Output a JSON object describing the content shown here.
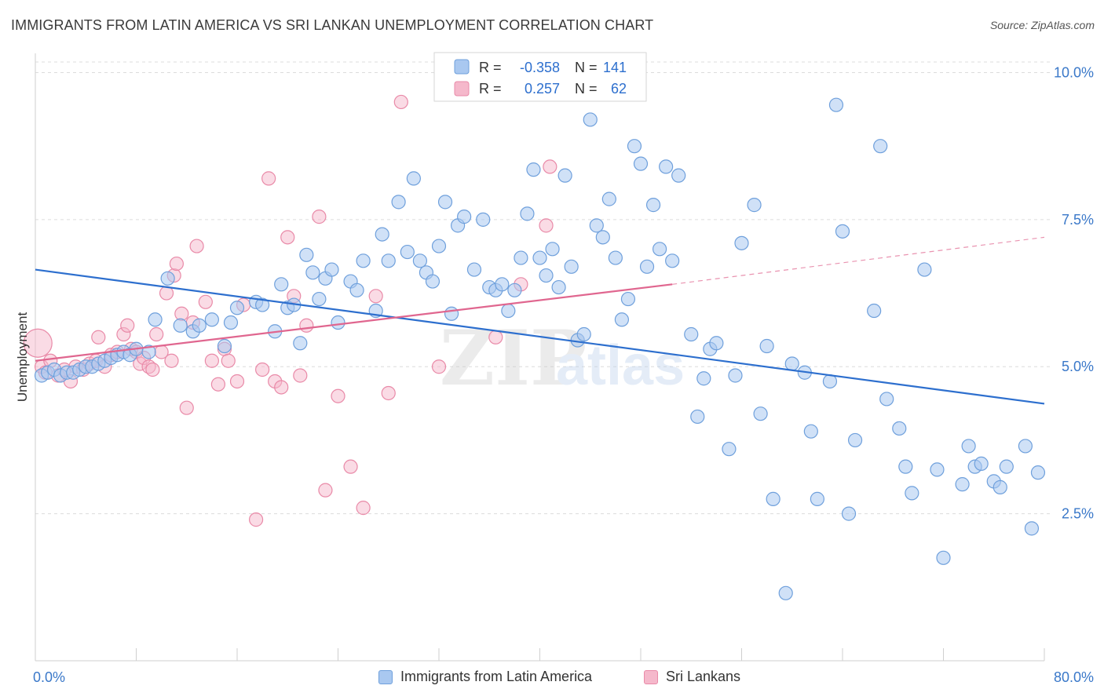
{
  "header": {
    "title": "IMMIGRANTS FROM LATIN AMERICA VS SRI LANKAN UNEMPLOYMENT CORRELATION CHART",
    "source": "Source: ZipAtlas.com"
  },
  "watermark": {
    "zip": "ZIP",
    "atlas": "atlas"
  },
  "colors": {
    "blue_fill": "#a9c8f0",
    "blue_stroke": "#6fa0dc",
    "blue_line": "#2d6fce",
    "pink_fill": "#f5b8cb",
    "pink_stroke": "#e98aa8",
    "pink_line": "#e0668f",
    "axis_text": "#3a78c9",
    "grid": "#dcdcdc"
  },
  "stats_legend": [
    {
      "r_label": "R =",
      "r_value": "-0.358",
      "n_label": "N =",
      "n_value": "141",
      "color": "blue"
    },
    {
      "r_label": "R =",
      "r_value": "0.257",
      "n_label": "N =",
      "n_value": "62",
      "color": "pink"
    }
  ],
  "chart_data": {
    "type": "scatter",
    "title": "IMMIGRANTS FROM LATIN AMERICA VS SRI LANKAN UNEMPLOYMENT CORRELATION CHART",
    "xlabel": "",
    "ylabel": "Unemployment",
    "xlim": [
      0,
      80
    ],
    "ylim": [
      0,
      10.5
    ],
    "x_tick_labels": [
      "0.0%",
      "80.0%"
    ],
    "y_ticks": [
      2.5,
      5.0,
      7.5,
      10.0
    ],
    "y_tick_labels": [
      "2.5%",
      "5.0%",
      "7.5%",
      "10.0%"
    ],
    "grid": "horizontal dashed",
    "legend_position": "bottom",
    "series": [
      {
        "name": "Immigrants from Latin America",
        "color": "blue",
        "r": -0.358,
        "n": 141,
        "trend": {
          "x0": 0,
          "y0": 6.65,
          "x1": 80,
          "y1": 4.37
        },
        "points": [
          [
            0.5,
            4.85
          ],
          [
            1.0,
            4.9
          ],
          [
            1.5,
            4.95
          ],
          [
            2.0,
            4.85
          ],
          [
            2.5,
            4.9
          ],
          [
            3.0,
            4.9
          ],
          [
            3.5,
            4.95
          ],
          [
            4.0,
            5.0
          ],
          [
            4.5,
            5.0
          ],
          [
            5.0,
            5.05
          ],
          [
            5.5,
            5.1
          ],
          [
            6.0,
            5.15
          ],
          [
            6.5,
            5.2
          ],
          [
            7.0,
            5.25
          ],
          [
            7.5,
            5.2
          ],
          [
            8.0,
            5.3
          ],
          [
            9.0,
            5.25
          ],
          [
            9.5,
            5.8
          ],
          [
            10.5,
            6.5
          ],
          [
            11.5,
            5.7
          ],
          [
            12.5,
            5.6
          ],
          [
            13.0,
            5.7
          ],
          [
            14.0,
            5.8
          ],
          [
            15.0,
            5.35
          ],
          [
            15.5,
            5.75
          ],
          [
            16.0,
            6.0
          ],
          [
            17.5,
            6.1
          ],
          [
            18.0,
            6.05
          ],
          [
            19.0,
            5.6
          ],
          [
            19.5,
            6.4
          ],
          [
            20.0,
            6.0
          ],
          [
            20.5,
            6.05
          ],
          [
            21.0,
            5.4
          ],
          [
            21.5,
            6.9
          ],
          [
            22.0,
            6.6
          ],
          [
            22.5,
            6.15
          ],
          [
            23.0,
            6.5
          ],
          [
            23.5,
            6.65
          ],
          [
            24.0,
            5.75
          ],
          [
            25.0,
            6.45
          ],
          [
            25.5,
            6.3
          ],
          [
            26.0,
            6.8
          ],
          [
            27.0,
            5.95
          ],
          [
            27.5,
            7.25
          ],
          [
            28.0,
            6.8
          ],
          [
            28.8,
            7.8
          ],
          [
            29.5,
            6.95
          ],
          [
            30.0,
            8.2
          ],
          [
            30.5,
            6.8
          ],
          [
            31.0,
            6.6
          ],
          [
            31.5,
            6.45
          ],
          [
            32.0,
            7.05
          ],
          [
            32.5,
            7.8
          ],
          [
            33.0,
            5.9
          ],
          [
            33.5,
            7.4
          ],
          [
            34.0,
            7.55
          ],
          [
            34.8,
            6.65
          ],
          [
            35.5,
            7.5
          ],
          [
            36.0,
            6.35
          ],
          [
            36.5,
            6.3
          ],
          [
            37.0,
            6.4
          ],
          [
            37.5,
            5.95
          ],
          [
            38.0,
            6.3
          ],
          [
            38.5,
            6.85
          ],
          [
            39.0,
            7.6
          ],
          [
            39.5,
            8.35
          ],
          [
            40.0,
            6.85
          ],
          [
            40.5,
            6.55
          ],
          [
            41.0,
            7.0
          ],
          [
            41.5,
            6.35
          ],
          [
            42.0,
            8.25
          ],
          [
            42.5,
            6.7
          ],
          [
            43.0,
            5.45
          ],
          [
            43.5,
            5.55
          ],
          [
            44.0,
            9.2
          ],
          [
            44.5,
            7.4
          ],
          [
            45.0,
            7.2
          ],
          [
            45.5,
            7.85
          ],
          [
            46.5,
            5.8
          ],
          [
            46.0,
            6.85
          ],
          [
            47.0,
            6.15
          ],
          [
            47.5,
            8.75
          ],
          [
            48.0,
            8.45
          ],
          [
            48.5,
            6.7
          ],
          [
            49.0,
            7.75
          ],
          [
            49.5,
            7.0
          ],
          [
            50.0,
            8.4
          ],
          [
            50.5,
            6.8
          ],
          [
            51.0,
            8.25
          ],
          [
            52.0,
            5.55
          ],
          [
            52.5,
            4.15
          ],
          [
            53.0,
            4.8
          ],
          [
            53.5,
            5.3
          ],
          [
            54.0,
            5.4
          ],
          [
            55.0,
            3.6
          ],
          [
            55.5,
            4.85
          ],
          [
            56.0,
            7.1
          ],
          [
            57.0,
            7.75
          ],
          [
            57.5,
            4.2
          ],
          [
            58.0,
            5.35
          ],
          [
            58.5,
            2.75
          ],
          [
            59.5,
            1.15
          ],
          [
            60.0,
            5.05
          ],
          [
            61.0,
            4.9
          ],
          [
            61.5,
            3.9
          ],
          [
            62.0,
            2.75
          ],
          [
            63.0,
            4.75
          ],
          [
            63.5,
            9.45
          ],
          [
            64.0,
            7.3
          ],
          [
            64.5,
            2.5
          ],
          [
            65.0,
            3.75
          ],
          [
            66.5,
            5.95
          ],
          [
            67.0,
            8.75
          ],
          [
            67.5,
            4.45
          ],
          [
            68.5,
            3.95
          ],
          [
            69.0,
            3.3
          ],
          [
            69.5,
            2.85
          ],
          [
            70.5,
            6.65
          ],
          [
            71.5,
            3.25
          ],
          [
            72.0,
            1.75
          ],
          [
            73.5,
            3.0
          ],
          [
            74.0,
            3.65
          ],
          [
            74.5,
            3.3
          ],
          [
            75.0,
            3.35
          ],
          [
            76.0,
            3.05
          ],
          [
            76.5,
            2.95
          ],
          [
            77.0,
            3.3
          ],
          [
            78.5,
            3.65
          ],
          [
            79.0,
            2.25
          ],
          [
            79.5,
            3.2
          ]
        ]
      },
      {
        "name": "Sri Lankans",
        "color": "pink",
        "r": 0.257,
        "n": 62,
        "trend": {
          "x0": 0,
          "y0": 5.1,
          "x1": 50.5,
          "y1": 6.4
        },
        "trend_dashed": {
          "x0": 50.5,
          "y0": 6.4,
          "x1": 80,
          "y1": 7.2
        },
        "points": [
          [
            0.2,
            5.4
          ],
          [
            0.5,
            5.0
          ],
          [
            0.8,
            4.9
          ],
          [
            1.2,
            5.1
          ],
          [
            1.8,
            4.85
          ],
          [
            2.3,
            4.95
          ],
          [
            2.8,
            4.75
          ],
          [
            3.2,
            5.0
          ],
          [
            3.8,
            4.95
          ],
          [
            4.3,
            5.05
          ],
          [
            4.8,
            5.1
          ],
          [
            5.0,
            5.5
          ],
          [
            5.5,
            5.0
          ],
          [
            6.0,
            5.2
          ],
          [
            6.5,
            5.25
          ],
          [
            7.0,
            5.55
          ],
          [
            7.3,
            5.7
          ],
          [
            7.6,
            5.3
          ],
          [
            8.0,
            5.25
          ],
          [
            8.3,
            5.05
          ],
          [
            8.6,
            5.15
          ],
          [
            9.0,
            5.0
          ],
          [
            9.3,
            4.95
          ],
          [
            9.6,
            5.55
          ],
          [
            10.0,
            5.25
          ],
          [
            10.4,
            6.25
          ],
          [
            10.8,
            5.1
          ],
          [
            11.0,
            6.55
          ],
          [
            11.2,
            6.75
          ],
          [
            11.6,
            5.9
          ],
          [
            12.0,
            4.3
          ],
          [
            12.5,
            5.75
          ],
          [
            12.8,
            7.05
          ],
          [
            13.5,
            6.1
          ],
          [
            14.0,
            5.1
          ],
          [
            14.5,
            4.7
          ],
          [
            15.0,
            5.3
          ],
          [
            15.3,
            5.1
          ],
          [
            16.0,
            4.75
          ],
          [
            16.5,
            6.05
          ],
          [
            17.5,
            2.4
          ],
          [
            18.0,
            4.95
          ],
          [
            18.5,
            8.2
          ],
          [
            19.0,
            4.75
          ],
          [
            19.5,
            4.65
          ],
          [
            20.0,
            7.2
          ],
          [
            20.5,
            6.2
          ],
          [
            21.0,
            4.85
          ],
          [
            21.5,
            5.7
          ],
          [
            22.5,
            7.55
          ],
          [
            23.0,
            2.9
          ],
          [
            24.0,
            4.5
          ],
          [
            25.0,
            3.3
          ],
          [
            26.0,
            2.6
          ],
          [
            27.0,
            6.2
          ],
          [
            28.0,
            4.55
          ],
          [
            29.0,
            9.5
          ],
          [
            32.0,
            5.0
          ],
          [
            36.5,
            5.5
          ],
          [
            38.5,
            6.4
          ],
          [
            40.5,
            7.4
          ],
          [
            40.8,
            8.4
          ]
        ]
      }
    ]
  },
  "bottom_legend": [
    {
      "label": "Immigrants from Latin America",
      "color": "blue"
    },
    {
      "label": "Sri Lankans",
      "color": "pink"
    }
  ]
}
